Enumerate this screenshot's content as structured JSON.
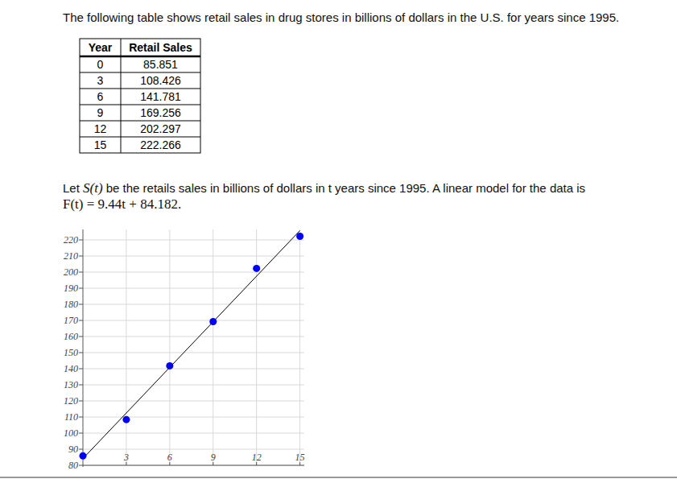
{
  "header": {
    "intro": "The following table shows retail sales in drug stores in billions of dollars in the U.S. for years since 1995."
  },
  "table": {
    "columns": [
      "Year",
      "Retail Sales"
    ],
    "rows": [
      [
        "0",
        "85.851"
      ],
      [
        "3",
        "108.426"
      ],
      [
        "6",
        "141.781"
      ],
      [
        "9",
        "169.256"
      ],
      [
        "12",
        "202.297"
      ],
      [
        "15",
        "222.266"
      ]
    ]
  },
  "text": {
    "before": "Let ",
    "function": "S(t)",
    "after": " be the retails sales in billions of dollars in t years since 1995. A linear model for the data is",
    "model": "F(t) = 9.44t + 84.182."
  },
  "chart_data": {
    "type": "scatter",
    "grid": true,
    "xlim": [
      0,
      15.3
    ],
    "xticks": [
      3,
      6,
      9,
      12,
      15
    ],
    "ylim": [
      80,
      226.5
    ],
    "yticks": [
      80,
      90,
      100,
      110,
      120,
      130,
      140,
      150,
      160,
      170,
      180,
      190,
      200,
      210,
      220
    ],
    "series": [
      {
        "type": "scatter",
        "marker": "circle",
        "color": "#0000ff",
        "x": [
          0,
          3,
          6,
          9,
          12,
          15
        ],
        "values": [
          85.851,
          108.426,
          141.781,
          169.256,
          202.297,
          222.266
        ]
      },
      {
        "type": "line",
        "line_style": "solid",
        "color": "#000000",
        "x": [
          0,
          15
        ],
        "values": [
          84.182,
          225.782
        ]
      }
    ]
  }
}
